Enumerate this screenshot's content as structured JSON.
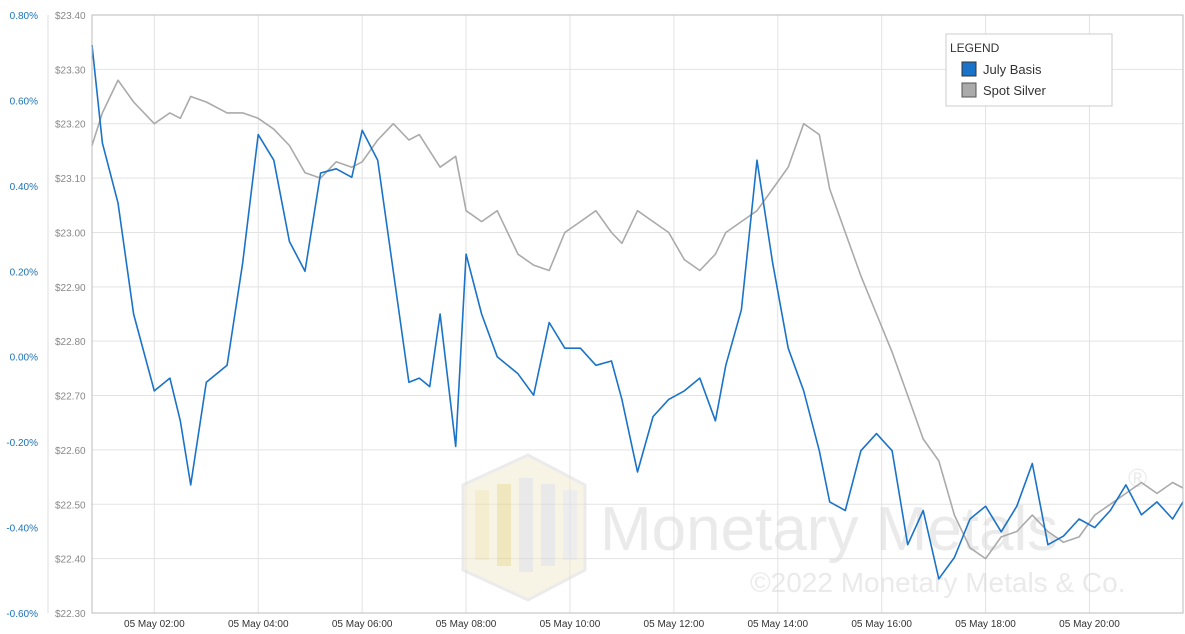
{
  "chart_data": {
    "type": "line",
    "title": "",
    "xlabel": "",
    "ylabel": "",
    "x_ticks": [
      "05 May 02:00",
      "05 May 04:00",
      "05 May 06:00",
      "05 May 08:00",
      "05 May 10:00",
      "05 May 12:00",
      "05 May 14:00",
      "05 May 16:00",
      "05 May 18:00",
      "05 May 20:00"
    ],
    "x_range_hours": [
      0.8,
      21.8
    ],
    "y_left": {
      "range": [
        -0.6,
        0.8
      ],
      "ticks": [
        "0.80%",
        "0.60%",
        "0.40%",
        "0.20%",
        "0.00%",
        "-0.20%",
        "-0.40%",
        "-0.60%"
      ],
      "values": [
        0.8,
        0.6,
        0.4,
        0.2,
        0.0,
        -0.2,
        -0.4,
        -0.6
      ]
    },
    "y_right": {
      "range": [
        22.3,
        23.4
      ],
      "ticks": [
        "$23.40",
        "$23.30",
        "$23.20",
        "$23.10",
        "$23.00",
        "$22.90",
        "$22.80",
        "$22.70",
        "$22.60",
        "$22.50",
        "$22.40",
        "$22.30"
      ],
      "values": [
        23.4,
        23.3,
        23.2,
        23.1,
        23.0,
        22.9,
        22.8,
        22.7,
        22.6,
        22.5,
        22.4,
        22.3
      ]
    },
    "grid": true,
    "legend": {
      "title": "LEGEND",
      "position": "top-right"
    },
    "series": [
      {
        "name": "July Basis",
        "axis": "left",
        "color": "#1a73c8",
        "x": [
          0.8,
          1.0,
          1.3,
          1.6,
          2.0,
          2.3,
          2.5,
          2.7,
          3.0,
          3.4,
          3.7,
          4.0,
          4.3,
          4.6,
          4.9,
          5.2,
          5.5,
          5.8,
          6.0,
          6.3,
          6.6,
          6.9,
          7.1,
          7.3,
          7.5,
          7.8,
          8.0,
          8.3,
          8.6,
          9.0,
          9.3,
          9.6,
          9.9,
          10.2,
          10.5,
          10.8,
          11.0,
          11.3,
          11.6,
          11.9,
          12.2,
          12.5,
          12.8,
          13.0,
          13.3,
          13.6,
          13.9,
          14.2,
          14.5,
          14.8,
          15.0,
          15.3,
          15.6,
          15.9,
          16.2,
          16.5,
          16.8,
          17.1,
          17.4,
          17.7,
          18.0,
          18.3,
          18.6,
          18.9,
          19.2,
          19.5,
          19.8,
          20.1,
          20.4,
          20.7,
          21.0,
          21.3,
          21.6,
          21.8
        ],
        "values": [
          0.73,
          0.5,
          0.36,
          0.1,
          -0.08,
          -0.05,
          -0.15,
          -0.3,
          -0.06,
          -0.02,
          0.22,
          0.52,
          0.46,
          0.27,
          0.2,
          0.43,
          0.44,
          0.42,
          0.53,
          0.46,
          0.2,
          -0.06,
          -0.05,
          -0.07,
          0.1,
          -0.21,
          0.24,
          0.1,
          0.0,
          -0.04,
          -0.09,
          0.08,
          0.02,
          0.02,
          -0.02,
          -0.01,
          -0.1,
          -0.27,
          -0.14,
          -0.1,
          -0.08,
          -0.05,
          -0.15,
          -0.02,
          0.11,
          0.46,
          0.22,
          0.02,
          -0.08,
          -0.22,
          -0.34,
          -0.36,
          -0.22,
          -0.18,
          -0.22,
          -0.44,
          -0.36,
          -0.52,
          -0.47,
          -0.38,
          -0.35,
          -0.41,
          -0.35,
          -0.25,
          -0.44,
          -0.42,
          -0.38,
          -0.4,
          -0.36,
          -0.3,
          -0.37,
          -0.34,
          -0.38,
          -0.34
        ]
      },
      {
        "name": "Spot Silver",
        "axis": "right",
        "color": "#aaaaaa",
        "x": [
          0.8,
          1.0,
          1.3,
          1.6,
          2.0,
          2.3,
          2.5,
          2.7,
          3.0,
          3.4,
          3.7,
          4.0,
          4.3,
          4.6,
          4.9,
          5.2,
          5.5,
          5.8,
          6.0,
          6.3,
          6.6,
          6.9,
          7.1,
          7.3,
          7.5,
          7.8,
          8.0,
          8.3,
          8.6,
          9.0,
          9.3,
          9.6,
          9.9,
          10.2,
          10.5,
          10.8,
          11.0,
          11.3,
          11.6,
          11.9,
          12.2,
          12.5,
          12.8,
          13.0,
          13.3,
          13.6,
          13.9,
          14.2,
          14.5,
          14.8,
          15.0,
          15.3,
          15.6,
          15.9,
          16.2,
          16.5,
          16.8,
          17.1,
          17.4,
          17.7,
          18.0,
          18.3,
          18.6,
          18.9,
          19.2,
          19.5,
          19.8,
          20.1,
          20.4,
          20.7,
          21.0,
          21.3,
          21.6,
          21.8
        ],
        "values": [
          23.16,
          23.22,
          23.28,
          23.24,
          23.2,
          23.22,
          23.21,
          23.25,
          23.24,
          23.22,
          23.22,
          23.21,
          23.19,
          23.16,
          23.11,
          23.1,
          23.13,
          23.12,
          23.13,
          23.17,
          23.2,
          23.17,
          23.18,
          23.15,
          23.12,
          23.14,
          23.04,
          23.02,
          23.04,
          22.96,
          22.94,
          22.93,
          23.0,
          23.02,
          23.04,
          23.0,
          22.98,
          23.04,
          23.02,
          23.0,
          22.95,
          22.93,
          22.96,
          23.0,
          23.02,
          23.04,
          23.08,
          23.12,
          23.2,
          23.18,
          23.08,
          23.0,
          22.92,
          22.85,
          22.78,
          22.7,
          22.62,
          22.58,
          22.48,
          22.42,
          22.4,
          22.44,
          22.45,
          22.48,
          22.45,
          22.43,
          22.44,
          22.48,
          22.5,
          22.52,
          22.54,
          22.52,
          22.54,
          22.53
        ]
      }
    ]
  },
  "watermark": {
    "brand": "Monetary Metals",
    "registered": "®",
    "copyright": "©2022 Monetary Metals & Co."
  }
}
